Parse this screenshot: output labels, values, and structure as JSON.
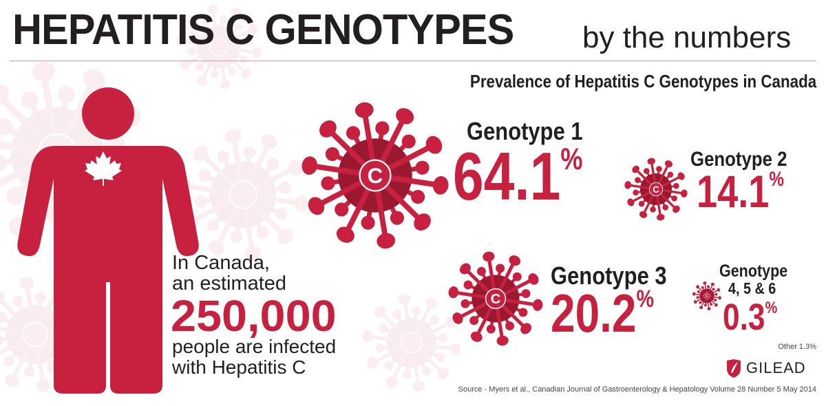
{
  "header": {
    "title": "HEPATITIS C GENOTYPES",
    "subtitle": "by the numbers",
    "chart_title": "Prevalence of Hepatitis C Genotypes in Canada"
  },
  "left": {
    "line1": "In Canada,",
    "line2": "an estimated",
    "number": "250,000",
    "line3": "people are infected",
    "line4": "with Hepatitis C"
  },
  "genotypes": [
    {
      "label": "Genotype 1",
      "value": "64.1",
      "unit": "%"
    },
    {
      "label": "Genotype 2",
      "value": "14.1",
      "unit": "%"
    },
    {
      "label": "Genotype 3",
      "value": "20.2",
      "unit": "%"
    },
    {
      "label_line1": "Genotype",
      "label_line2": "4, 5 & 6",
      "value": "0.3",
      "unit": "%"
    }
  ],
  "other": "Other  1.3%",
  "brand": "GILEAD",
  "source": "Source - Myers et al., Canadian Journal of Gastroenterology & Hepatology Volume 28 Number 5 May 2014",
  "virus_letter": "C",
  "colors": {
    "red": "#c8203f",
    "dark": "#9a1830"
  }
}
